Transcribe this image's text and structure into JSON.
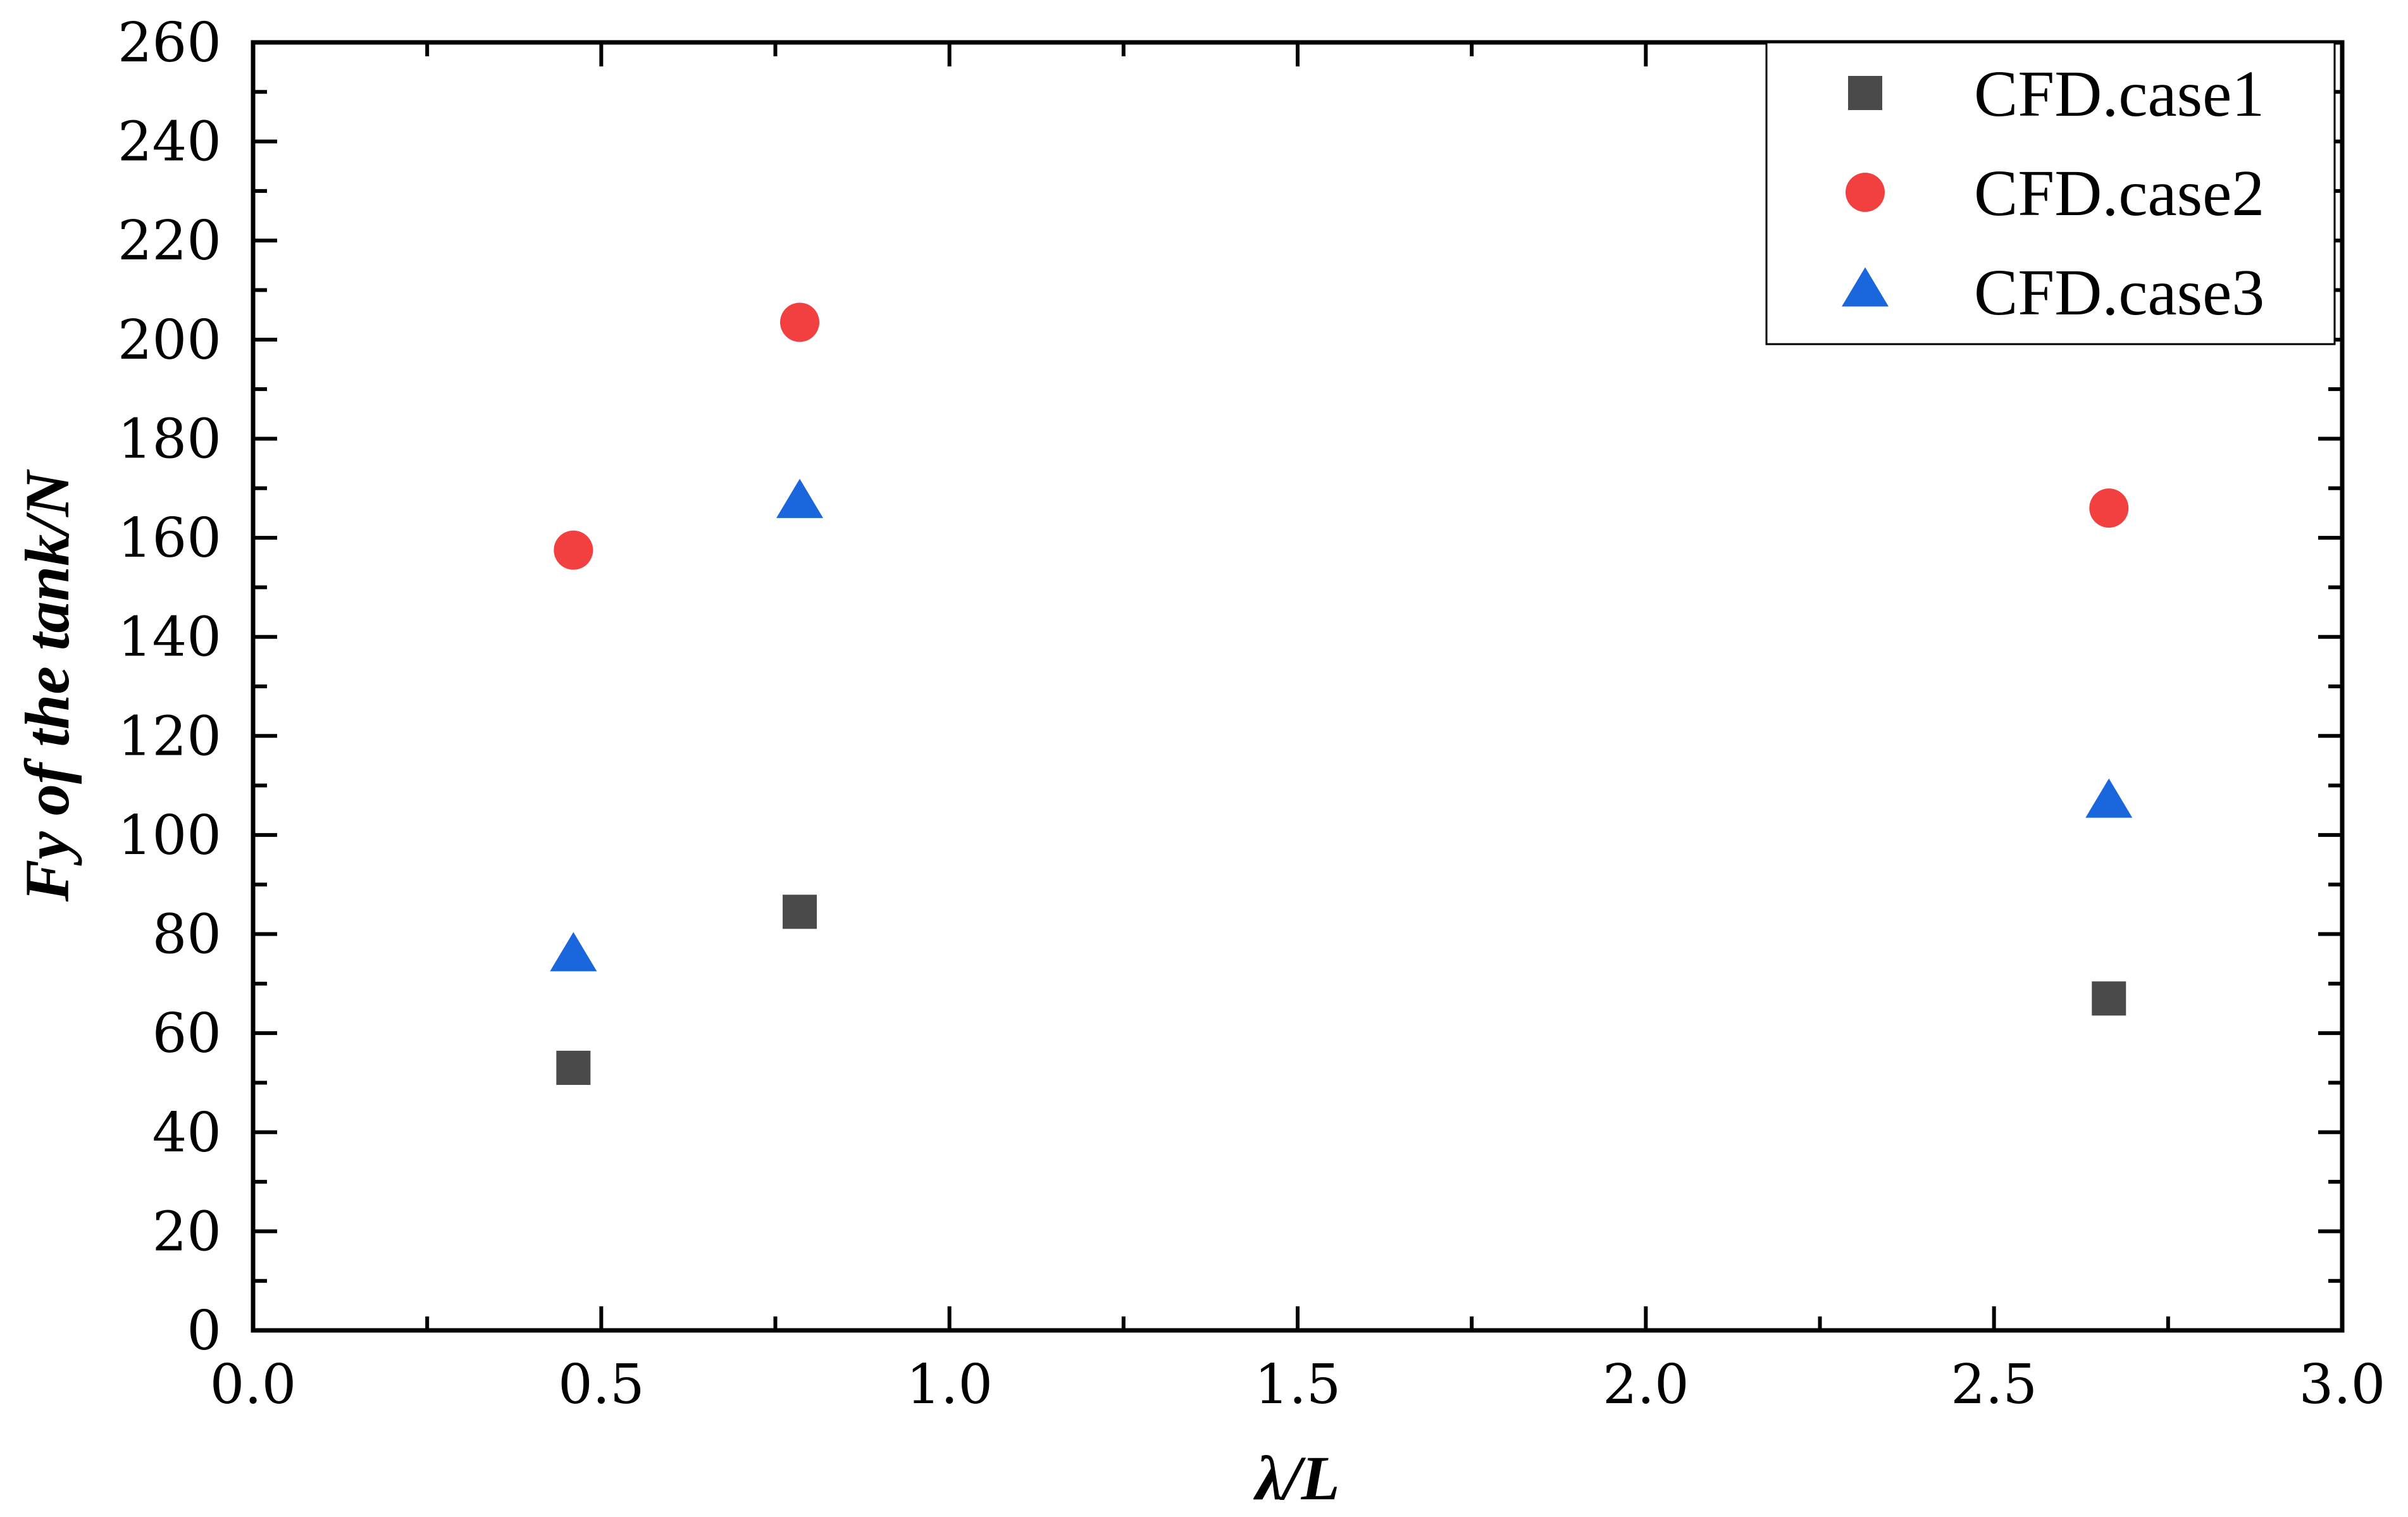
{
  "chart_data": {
    "type": "scatter",
    "title": "",
    "xlabel": "λ/L",
    "ylabel": "Fy of the tank/N",
    "xlim": [
      0.0,
      3.0
    ],
    "ylim": [
      0,
      260
    ],
    "x_major_ticks": [
      "0.0",
      "0.5",
      "1.0",
      "1.5",
      "2.0",
      "2.5",
      "3.0"
    ],
    "y_major_ticks": [
      "0",
      "20",
      "40",
      "60",
      "80",
      "100",
      "120",
      "140",
      "160",
      "180",
      "200",
      "220",
      "240",
      "260"
    ],
    "grid": false,
    "legend_position": "top-right",
    "series": [
      {
        "name": "CFD.case1",
        "marker": "square",
        "color": "#4a4a4a",
        "points": [
          {
            "x": 0.46,
            "y": 53
          },
          {
            "x": 0.785,
            "y": 84.5
          },
          {
            "x": 2.665,
            "y": 67
          }
        ]
      },
      {
        "name": "CFD.case2",
        "marker": "circle",
        "color": "#f24040",
        "points": [
          {
            "x": 0.46,
            "y": 157.5
          },
          {
            "x": 0.785,
            "y": 203.5
          },
          {
            "x": 2.665,
            "y": 166
          }
        ]
      },
      {
        "name": "CFD.case3",
        "marker": "triangle",
        "color": "#1a66dd",
        "points": [
          {
            "x": 0.46,
            "y": 75.5
          },
          {
            "x": 0.785,
            "y": 167
          },
          {
            "x": 2.665,
            "y": 106.5
          }
        ]
      }
    ]
  }
}
